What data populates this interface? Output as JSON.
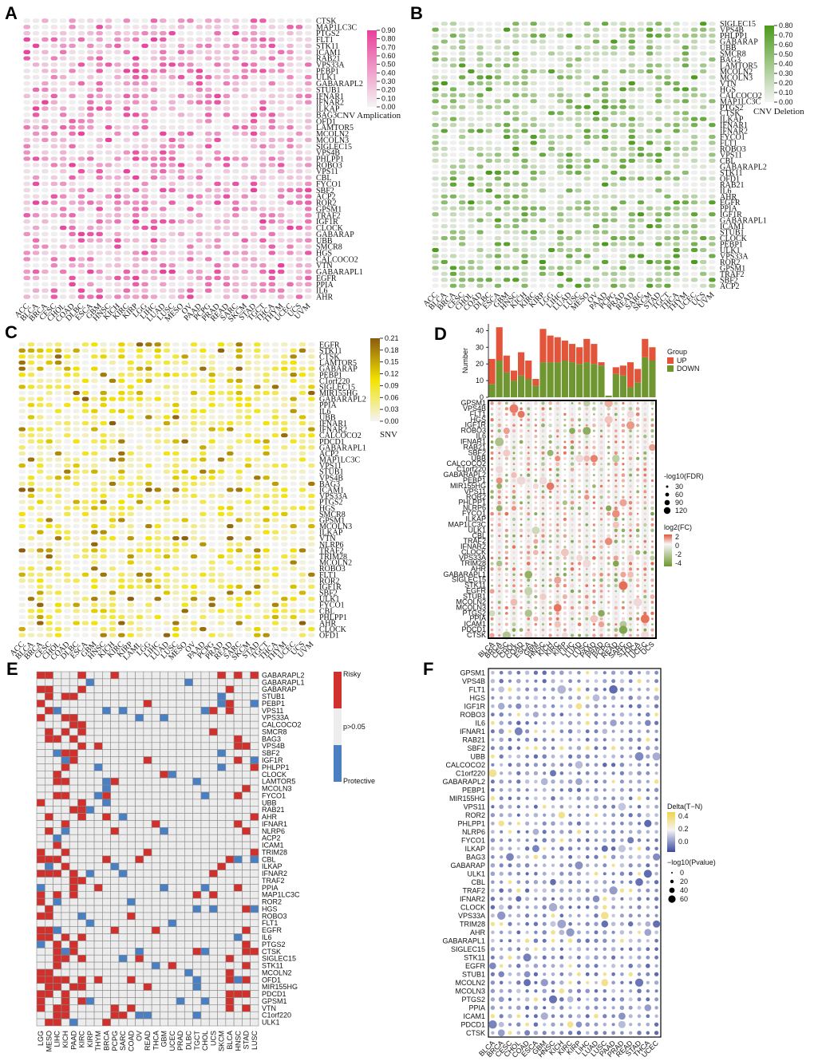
{
  "panels": {
    "a": "A",
    "b": "B",
    "c": "C",
    "d": "D",
    "e": "E",
    "f": "F"
  },
  "chart_data": [
    {
      "id": "A",
      "type": "heatmap",
      "title": "",
      "legend_title": "CNV Amplication",
      "legend_ticks": [
        "0.90",
        "0.80",
        "0.70",
        "0.60",
        "0.50",
        "0.40",
        "0.30",
        "0.20",
        "0.10",
        "0.00"
      ],
      "colors": {
        "low": "#f4f4f4",
        "high": "#e8409a"
      },
      "genes": [
        "CTSK",
        "MAP1LC3C",
        "PTGS2",
        "FLT1",
        "STK11",
        "ICAM1",
        "RAB21",
        "VPS33A",
        "PEBP1",
        "ULK1",
        "GABARAPL2",
        "STUB1",
        "IFNAR1",
        "IFNAR2",
        "ILKAP",
        "BAG3",
        "OFD1",
        "LAMTOR5",
        "MCOLN2",
        "MCOLN3",
        "SIGLEC15",
        "VPS4B",
        "PHLPP1",
        "ROBO3",
        "VPS11",
        "CBL",
        "FYCO1",
        "SBF2",
        "ACP2",
        "ROR2",
        "GPSM1",
        "TRAF2",
        "IGF1R",
        "CLOCK",
        "GABARAP",
        "UBB",
        "SMCR8",
        "HGS",
        "CALCOCO2",
        "VTN",
        "GABARAPL1",
        "EGFR",
        "PPIA",
        "IL6",
        "AHR"
      ],
      "cancers": [
        "ACC",
        "BLCA",
        "BRCA",
        "CESC",
        "CHOL",
        "COAD",
        "DLBC",
        "ESCA",
        "GBM",
        "HNSC",
        "KICH",
        "KIRC",
        "KIRP",
        "LGG",
        "LIHC",
        "LUAD",
        "LUSC",
        "MESO",
        "OV",
        "PAAD",
        "PCPG",
        "PRAD",
        "READ",
        "SARC",
        "SKCM",
        "STAD",
        "TGCT",
        "THCA",
        "THYM",
        "UCEC",
        "UCS",
        "UVM"
      ]
    },
    {
      "id": "B",
      "type": "heatmap",
      "title": "",
      "legend_title": "CNV Deletion",
      "legend_ticks": [
        "0.80",
        "0.70",
        "0.60",
        "0.50",
        "0.40",
        "0.30",
        "0.20",
        "0.10",
        "0.00"
      ],
      "colors": {
        "low": "#f4f4f4",
        "high": "#4c9a1c"
      },
      "genes": [
        "SIGLEC15",
        "VPS4B",
        "PHLPP1",
        "GABARAP",
        "UBB",
        "SMCR8",
        "BAG3",
        "LAMTOR5",
        "MCOLN2",
        "MCOLN3",
        "VTN",
        "HGS",
        "CALCOCO2",
        "MAP1LC3C",
        "PTGS2",
        "CTSK",
        "ILKAP",
        "IFNAR1",
        "IFNAR2",
        "FYCO1",
        "FLT1",
        "ROBO3",
        "VPS11",
        "CBL",
        "GABARAPL2",
        "STK11",
        "OFD1",
        "RAB21",
        "IL6",
        "AHR",
        "EGFR",
        "PPIA",
        "IGF1R",
        "GABARAPL1",
        "ICAM1",
        "STUB1",
        "CLOCK",
        "PEBP1",
        "ULK1",
        "VPS33A",
        "ROR2",
        "GPSM1",
        "TRAF2",
        "SBF2",
        "ACP2"
      ],
      "cancers": [
        "ACC",
        "BLCA",
        "BRCA",
        "CESC",
        "CHOL",
        "COAD",
        "DLBC",
        "ESCA",
        "GBM",
        "HNSC",
        "KICH",
        "KIRC",
        "KIRP",
        "LGG",
        "LIHC",
        "LUAD",
        "LUSC",
        "MESO",
        "OV",
        "PAAD",
        "PCPG",
        "PRAD",
        "READ",
        "SARC",
        "SKCM",
        "STAD",
        "TGCT",
        "THCA",
        "THYM",
        "UCEC",
        "UCS",
        "UVM"
      ]
    },
    {
      "id": "C",
      "type": "heatmap",
      "title": "",
      "legend_title": "SNV",
      "legend_ticks": [
        "0.21",
        "0.18",
        "0.15",
        "0.12",
        "0.09",
        "0.06",
        "0.03",
        "0.00"
      ],
      "colors": {
        "low": "#f4f4f4",
        "mid": "#f2e200",
        "high": "#8b5a10"
      },
      "genes": [
        "EGFR",
        "STK11",
        "CTSK",
        "LAMTOR5",
        "GABARAP",
        "PEBP1",
        "C1orf220",
        "SIGLEC15",
        "MIR155HG",
        "GABARAPL2",
        "PPIA",
        "IL6",
        "UBB",
        "IFNAR1",
        "IFNAR2",
        "CALCOCO2",
        "PDCD1",
        "GABARAPL1",
        "ACP2",
        "MAP1LC3C",
        "VPS11",
        "STUB1",
        "VPS4B",
        "BAG3",
        "ICAM1",
        "VPS33A",
        "PTGS2",
        "HGS",
        "SMCR8",
        "GPSM1",
        "MCOLN3",
        "ILKAP",
        "VTN",
        "NLRP6",
        "TRAF2",
        "TRIM28",
        "MCOLN2",
        "ROBO3",
        "FLT1",
        "ROR2",
        "IGF1R",
        "SBF2",
        "ULK1",
        "FYCO1",
        "CBL",
        "PHLPP1",
        "AHR",
        "CLOCK",
        "OFD1"
      ],
      "cancers": [
        "ACC",
        "BLCA",
        "BRCA",
        "CESC",
        "CHOL",
        "COAD",
        "DLBC",
        "ESCA",
        "GBM",
        "HNSC",
        "KICH",
        "KIRC",
        "KIRP",
        "LAML",
        "LGG",
        "LIHC",
        "LUAD",
        "LUSC",
        "MESO",
        "OV",
        "PAAD",
        "PCPG",
        "PRAD",
        "READ",
        "SARC",
        "SKCM",
        "STAD",
        "TGCT",
        "THCA",
        "THYM",
        "UCEC",
        "UCS",
        "UVM"
      ]
    },
    {
      "id": "D",
      "type": "bar",
      "ylabel": "Number",
      "yticks": [
        0,
        10,
        20,
        30,
        40
      ],
      "legend_title": "Group",
      "series": [
        {
          "name": "UP",
          "color": "#e2553a",
          "values": [
            15,
            20,
            10,
            6,
            14,
            11,
            4,
            20,
            16,
            15,
            12,
            11,
            10,
            14,
            12,
            2,
            0,
            4,
            6,
            15,
            8,
            11,
            8
          ]
        },
        {
          "name": "DOWN",
          "color": "#6f9630",
          "values": [
            8,
            22,
            15,
            10,
            13,
            11,
            7,
            21,
            21,
            21,
            22,
            21,
            20,
            21,
            20,
            19,
            1,
            14,
            13,
            6,
            9,
            24,
            22
          ]
        }
      ],
      "categories": [
        "BLCA",
        "BRCA",
        "CESC",
        "CHOL",
        "COAD",
        "ESCA",
        "GBM",
        "HNSC",
        "KICH",
        "KIRC",
        "KIRP",
        "LIHC",
        "LUAD",
        "LUSC",
        "PAAD",
        "PRAD",
        "PCPG",
        "READ",
        "SARC",
        "STAD",
        "THCA",
        "UCEC",
        "UCS"
      ]
    },
    {
      "id": "D2",
      "type": "scatter",
      "legend_size_title": "-log10(FDR)",
      "legend_size_values": [
        "30",
        "60",
        "90",
        "120"
      ],
      "legend_color_title": "log2(FC)",
      "legend_color_ticks": [
        "2",
        "0",
        "-2",
        "-4"
      ],
      "genes": [
        "GPSM1",
        "VPS4B",
        "FLT1",
        "HGS",
        "IGF1R",
        "ROBO3",
        "IL6",
        "IFNAR1",
        "RAB21",
        "SBF2",
        "UBB",
        "CALCOCO2",
        "C1orf220",
        "GABARAPL2",
        "PEBP1",
        "MIR155HG",
        "VPS11",
        "ROR2",
        "PHLPP1",
        "NLRP6",
        "FYCO1",
        "ILKAP",
        "MAP1LC3C",
        "ULK1",
        "CBL",
        "TRAF2",
        "IFNAR2",
        "CLOCK",
        "VPS33A",
        "TRIM28",
        "AHR",
        "GABARAPL1",
        "SIGLEC15",
        "STK11",
        "EGFR",
        "STUB1",
        "MCOLN2",
        "MCOLN3",
        "PTGS2",
        "PPIA",
        "ICAM1",
        "PDCD1",
        "CTSK"
      ],
      "cancers": [
        "BLCA",
        "BRCA",
        "CESC",
        "CHOL",
        "COAD",
        "ESCA",
        "GBM",
        "HNSC",
        "KICH",
        "KIRC",
        "KIRP",
        "LIHC",
        "LUAD",
        "LUSC",
        "PAAD",
        "PRAD",
        "PCPG",
        "READ",
        "SARC",
        "STAD",
        "THCA",
        "UCEC",
        "UCS"
      ]
    },
    {
      "id": "E",
      "type": "heatmap",
      "legend": [
        {
          "label": "Risky",
          "color": "#d0312d"
        },
        {
          "label": "p>0.05",
          "color": "#ededed"
        },
        {
          "label": "Protective",
          "color": "#4a7fc1"
        }
      ],
      "genes": [
        "GABARAPL2",
        "GABARAPL1",
        "GABARAP",
        "STUB1",
        "PEBP1",
        "VPS11",
        "VPS33A",
        "CALCOCO2",
        "SMCR8",
        "BAG3",
        "VPS4B",
        "SBF2",
        "IGF1R",
        "PHLPP1",
        "CLOCK",
        "LAMTOR5",
        "MCOLN3",
        "FYCO1",
        "UBB",
        "RAB21",
        "AHR",
        "IFNAR1",
        "NLRP6",
        "ACP2",
        "ICAM1",
        "TRIM28",
        "CBL",
        "ILKAP",
        "IFNAR2",
        "TRAF2",
        "PPIA",
        "MAP1LC3C",
        "ROR2",
        "HGS",
        "ROBO3",
        "FLT1",
        "EGFR",
        "IL6",
        "PTGS2",
        "CTSK",
        "SIGLEC15",
        "STK11",
        "MCOLN2",
        "OFD1",
        "MIR155HG",
        "PDCD1",
        "GPSM1",
        "VTN",
        "C1orf220",
        "ULK1"
      ],
      "cancers": [
        "LGG",
        "MESO",
        "LIHC",
        "KICH",
        "PAAD",
        "KIRC",
        "KIRP",
        "THYM",
        "BRCA",
        "PCPG",
        "SARC",
        "COAD",
        "OV",
        "READ",
        "THCA",
        "GBM",
        "UCEC",
        "PRAD",
        "DLBC",
        "TGCT",
        "CHOL",
        "UCS",
        "SKCM",
        "BLCA",
        "HNSC",
        "STAD",
        "LUSC"
      ]
    },
    {
      "id": "F",
      "type": "scatter",
      "legend_color_title": "Delta(T−N)",
      "legend_color_ticks": [
        "0.4",
        "0.2",
        "0.0"
      ],
      "legend_size_title": "−log10(Pvalue)",
      "legend_size_values": [
        "0",
        "20",
        "40",
        "60"
      ],
      "genes": [
        "GPSM1",
        "VPS4B",
        "FLT1",
        "HGS",
        "IGF1R",
        "ROBO3",
        "IL6",
        "IFNAR1",
        "RAB21",
        "SBF2",
        "UBB",
        "CALCOCO2",
        "C1orf220",
        "GABARAPL2",
        "PEBP1",
        "MIR155HG",
        "VPS11",
        "ROR2",
        "PHLPP1",
        "NLRP6",
        "FYCO1",
        "ILKAP",
        "BAG3",
        "GABARAP",
        "ULK1",
        "CBL",
        "TRAF2",
        "IFNAR2",
        "CLOCK",
        "VPS33A",
        "TRIM28",
        "AHR",
        "GABARAPL1",
        "SIGLEC15",
        "STK11",
        "EGFR",
        "STUB1",
        "MCOLN2",
        "MCOLN3",
        "PTGS2",
        "PPIA",
        "ICAM1",
        "PDCD1",
        "CTSK"
      ],
      "cancers": [
        "BLCA",
        "BRCA",
        "CESC",
        "CHOL",
        "COAD",
        "ESCA",
        "GBM",
        "HNSC",
        "KICH",
        "KIRC",
        "KIRP",
        "LIHC",
        "LUAD",
        "LUSC",
        "PAAD",
        "PRAD",
        "READ",
        "STAD",
        "THCA",
        "UCEC"
      ]
    }
  ]
}
